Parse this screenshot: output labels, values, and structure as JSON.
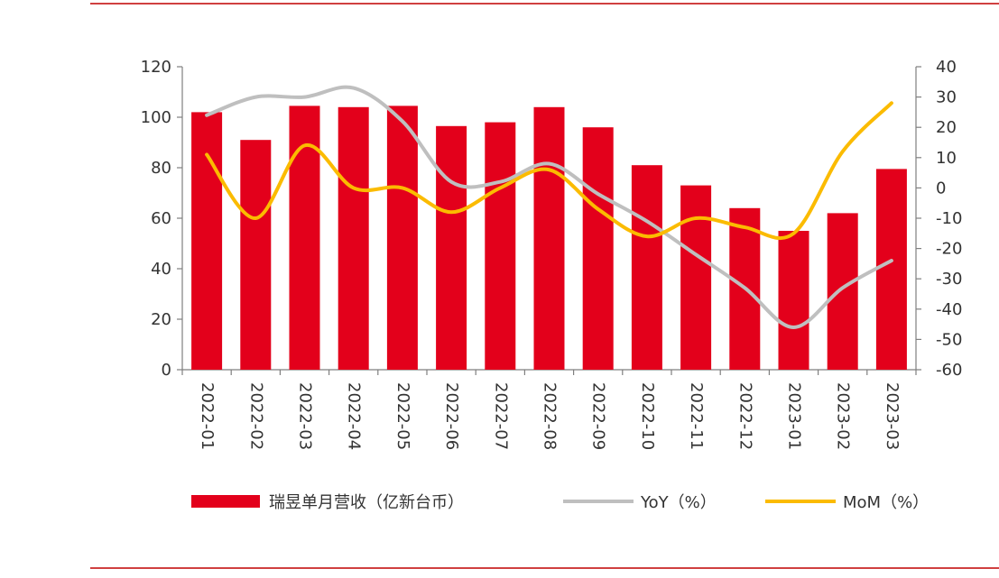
{
  "chart_data": {
    "type": "bar",
    "categories": [
      "2022-01",
      "2022-02",
      "2022-03",
      "2022-04",
      "2022-05",
      "2022-06",
      "2022-07",
      "2022-08",
      "2022-09",
      "2022-10",
      "2022-11",
      "2022-12",
      "2023-01",
      "2023-02",
      "2023-03"
    ],
    "series": [
      {
        "name": "瑞昱单月营收（亿新台币）",
        "type": "bar",
        "axis": "left",
        "color": "#e3001b",
        "values": [
          102,
          91,
          104.5,
          104,
          104.5,
          96.5,
          98,
          104,
          96,
          81,
          73,
          64,
          55,
          62,
          79.5
        ]
      },
      {
        "name": "YoY（%）",
        "type": "line",
        "axis": "right",
        "color": "#bfbfbf",
        "values": [
          24,
          30,
          30,
          33,
          22,
          2,
          2,
          8,
          -2,
          -11,
          -22,
          -33,
          -46,
          -33,
          -24
        ]
      },
      {
        "name": "MoM（%）",
        "type": "line",
        "axis": "right",
        "color": "#fbbb00",
        "values": [
          11,
          -10,
          14,
          0,
          0,
          -8,
          0,
          6,
          -7,
          -16,
          -10,
          -13,
          -15,
          12,
          28
        ]
      }
    ],
    "y_left": {
      "range": [
        0,
        120
      ],
      "ticks": [
        "0",
        "20",
        "40",
        "60",
        "80",
        "100",
        "120"
      ]
    },
    "y_right": {
      "range": [
        -60,
        40
      ],
      "ticks": [
        "-60",
        "-50",
        "-40",
        "-30",
        "-20",
        "-10",
        "0",
        "10",
        "20",
        "30",
        "40"
      ]
    },
    "legend": {
      "placement": "bottom",
      "items": [
        "瑞昱单月营收（亿新台币）",
        "YoY（%）",
        "MoM（%）"
      ]
    },
    "grid": false,
    "frame_color": "#c00000"
  }
}
